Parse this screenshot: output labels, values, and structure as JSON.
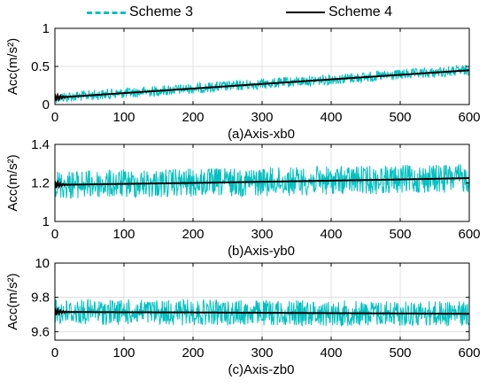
{
  "legend": [
    {
      "name": "Scheme 3",
      "color": "#00C0C0",
      "style": "dashed"
    },
    {
      "name": "Scheme 4",
      "color": "#000000",
      "style": "solid"
    }
  ],
  "chart_data": [
    {
      "type": "line",
      "title": "(a)Axis-xb0",
      "xlabel": "",
      "ylabel": "Acc(m/s²)",
      "xlim": [
        0,
        600
      ],
      "ylim": [
        0,
        1
      ],
      "xticks": [
        "0",
        "100",
        "200",
        "300",
        "400",
        "500",
        "600"
      ],
      "yticks": [
        "0",
        "0.5",
        "1"
      ],
      "grid": true,
      "series": [
        {
          "name": "Scheme 3",
          "color": "#00C0C0",
          "x": [
            0,
            100,
            200,
            300,
            400,
            500,
            600
          ],
          "y_mean": [
            0.09,
            0.15,
            0.21,
            0.27,
            0.33,
            0.39,
            0.45
          ],
          "y_spread": 0.07
        },
        {
          "name": "Scheme 4",
          "color": "#000000",
          "x": [
            0,
            100,
            200,
            300,
            400,
            500,
            600
          ],
          "y": [
            0.09,
            0.15,
            0.21,
            0.27,
            0.33,
            0.39,
            0.45
          ]
        }
      ]
    },
    {
      "type": "line",
      "title": "(b)Axis-yb0",
      "xlabel": "",
      "ylabel": "Acc(m/s²)",
      "xlim": [
        0,
        600
      ],
      "ylim": [
        1,
        1.4
      ],
      "xticks": [
        "0",
        "100",
        "200",
        "300",
        "400",
        "500",
        "600"
      ],
      "yticks": [
        "1",
        "1.2",
        "1.4"
      ],
      "grid": true,
      "series": [
        {
          "name": "Scheme 3",
          "color": "#00C0C0",
          "x": [
            0,
            100,
            200,
            300,
            400,
            500,
            600
          ],
          "y_mean": [
            1.19,
            1.195,
            1.2,
            1.206,
            1.212,
            1.218,
            1.225
          ],
          "y_spread": 0.075
        },
        {
          "name": "Scheme 4",
          "color": "#000000",
          "x": [
            0,
            100,
            200,
            300,
            400,
            500,
            600
          ],
          "y": [
            1.19,
            1.195,
            1.2,
            1.206,
            1.212,
            1.218,
            1.225
          ]
        }
      ]
    },
    {
      "type": "line",
      "title": "(c)Axis-zb0",
      "xlabel": "",
      "ylabel": "Acc(m/s²)",
      "xlim": [
        0,
        600
      ],
      "ylim": [
        9.55,
        10
      ],
      "xticks": [
        "0",
        "100",
        "200",
        "300",
        "400",
        "500",
        "600"
      ],
      "yticks": [
        "9.6",
        "9.8",
        "10"
      ],
      "grid": true,
      "series": [
        {
          "name": "Scheme 3",
          "color": "#00C0C0",
          "x": [
            0,
            100,
            200,
            300,
            400,
            500,
            600
          ],
          "y_mean": [
            9.715,
            9.713,
            9.712,
            9.71,
            9.708,
            9.706,
            9.704
          ],
          "y_spread": 0.075
        },
        {
          "name": "Scheme 4",
          "color": "#000000",
          "x": [
            0,
            100,
            200,
            300,
            400,
            500,
            600
          ],
          "y": [
            9.715,
            9.713,
            9.712,
            9.71,
            9.708,
            9.706,
            9.704
          ]
        }
      ]
    }
  ]
}
